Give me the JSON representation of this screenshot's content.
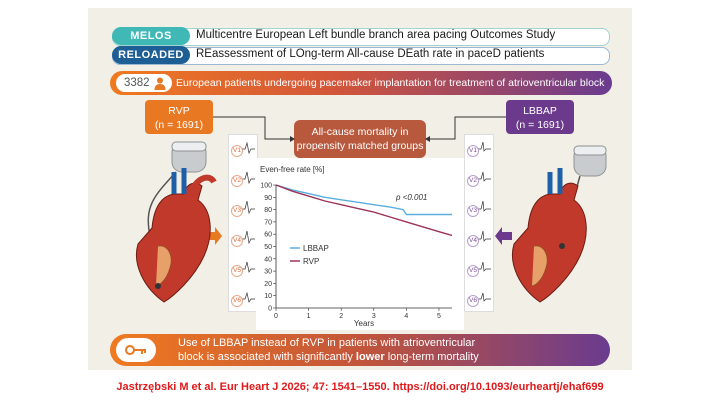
{
  "header": {
    "study1": {
      "acronym": "MELOS",
      "text": "Multicentre European Left bundle branch area pacing Outcomes Study",
      "color": "#3fb8b6"
    },
    "study2": {
      "acronym": "RELOADED",
      "text": "REassessment of LOng-term All-cause DEath rate in paceD patients",
      "color": "#1d5f95"
    }
  },
  "population": {
    "count": "3382",
    "text": "European patients undergoing pacemaker implantation for treatment of atrioventricular block"
  },
  "groups": {
    "rvp": {
      "name": "RVP",
      "n": "(n = 1691)",
      "color": "#e97822"
    },
    "lbbap": {
      "name": "LBBAP",
      "n": "(n = 1691)",
      "color": "#6b3a8c"
    }
  },
  "outcome": {
    "line1": "All-cause mortality in",
    "line2": "propensity matched groups"
  },
  "leads": [
    "V1",
    "V2",
    "V3",
    "V4",
    "V5",
    "V6"
  ],
  "chart_data": {
    "type": "line",
    "ylabel": "Even-free rate [%]",
    "xlabel": "Years",
    "x_ticks": [
      "0",
      "1",
      "2",
      "3",
      "4",
      "5"
    ],
    "y_ticks": [
      "0",
      "10",
      "20",
      "30",
      "40",
      "50",
      "60",
      "70",
      "80",
      "90",
      "100"
    ],
    "xlim": [
      0,
      5.4
    ],
    "ylim": [
      0,
      100
    ],
    "annotation": "p <0.001",
    "series": [
      {
        "name": "LBBAP",
        "color": "#5aaee0",
        "x": [
          0,
          0.5,
          1,
          1.5,
          2,
          2.5,
          3,
          3.5,
          3.9,
          4.0,
          4.5,
          5.0,
          5.4
        ],
        "y": [
          100,
          96,
          93,
          90,
          88,
          86,
          84,
          82,
          80,
          76,
          76,
          76,
          76
        ]
      },
      {
        "name": "RVP",
        "color": "#9c3556",
        "x": [
          0,
          0.5,
          1,
          1.5,
          2,
          2.5,
          3,
          3.5,
          4,
          4.5,
          5,
          5.4
        ],
        "y": [
          100,
          95,
          91,
          87,
          84,
          81,
          78,
          74,
          70,
          66,
          62,
          59
        ]
      }
    ]
  },
  "conclusion": {
    "part1": "Use of LBBAP instead of RVP in patients with atrioventricular",
    "part2": "block is associated with significantly ",
    "bold": "lower",
    "part3": " long-term mortality"
  },
  "citation": "Jastrzębski M et al.  Eur Heart J 2026; 47: 1541–1550. https://doi.org/10.1093/eurheartj/ehaf699"
}
